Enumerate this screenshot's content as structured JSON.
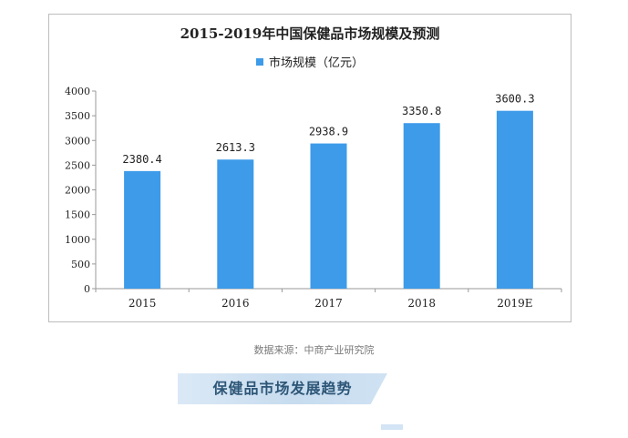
{
  "colors": {
    "bar": "#3d9be9",
    "axis": "#999999",
    "text": "#222222",
    "banner_text": "#2d5677"
  },
  "chart_data": {
    "type": "bar",
    "title": "2015-2019年中国保健品市场规模及预测",
    "categories": [
      "2015",
      "2016",
      "2017",
      "2018",
      "2019E"
    ],
    "series": [
      {
        "name": "市场规模（亿元）",
        "values": [
          2380.4,
          2613.3,
          2938.9,
          3350.8,
          3600.3
        ]
      }
    ],
    "data_labels": [
      "2380.4",
      "2613.3",
      "2938.9",
      "3350.8",
      "3600.3"
    ],
    "yticks": [
      0,
      500,
      1000,
      1500,
      2000,
      2500,
      3000,
      3500,
      4000
    ],
    "ylim": [
      0,
      4000
    ],
    "xlabel": "",
    "ylabel": "",
    "grid": false,
    "legend_position": "top"
  },
  "source": "数据来源：中商产业研究院",
  "banner": "保健品市场发展趋势"
}
